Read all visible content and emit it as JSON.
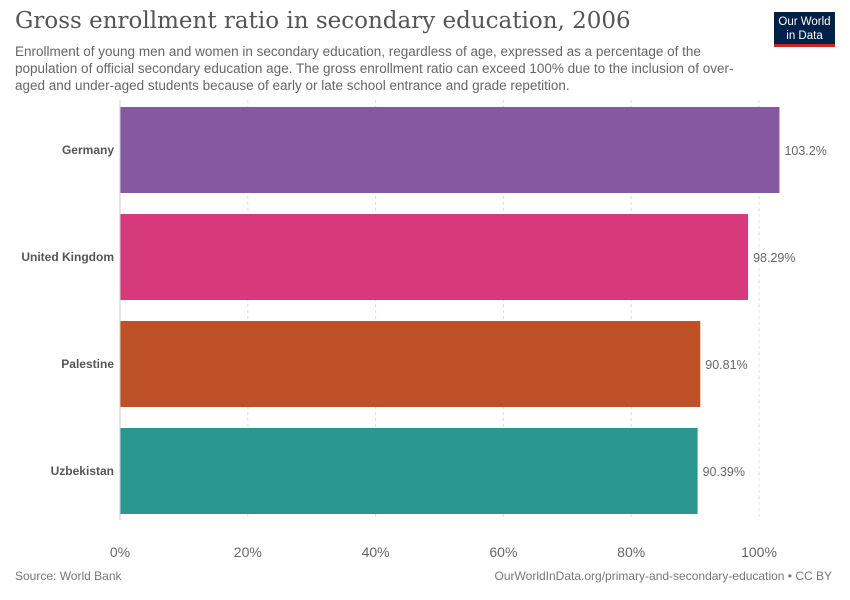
{
  "header": {
    "title": "Gross enrollment ratio in secondary education, 2006",
    "subtitle": "Enrollment of young men and women in secondary education, regardless of age, expressed as a percentage of the population of official secondary education age. The gross enrollment ratio can exceed 100% due to the inclusion of over-aged and under-aged students because of early or late school entrance and grade repetition.",
    "logo_line1": "Our World",
    "logo_line2": "in Data"
  },
  "footer": {
    "source": "Source: World Bank",
    "url_license": "OurWorldInData.org/primary-and-secondary-education • CC BY"
  },
  "chart_data": {
    "type": "bar",
    "orientation": "horizontal",
    "categories": [
      "Germany",
      "United Kingdom",
      "Palestine",
      "Uzbekistan"
    ],
    "values": [
      103.2,
      98.29,
      90.81,
      90.39
    ],
    "value_labels": [
      "103.2%",
      "98.29%",
      "90.81%",
      "90.39%"
    ],
    "colors": [
      "#8558a0",
      "#d63a7b",
      "#bf5129",
      "#2a9690"
    ],
    "xlim": [
      0,
      100
    ],
    "xticks": [
      0,
      20,
      40,
      60,
      80,
      100
    ],
    "xtick_labels": [
      "0%",
      "20%",
      "40%",
      "60%",
      "80%",
      "100%"
    ],
    "grid": true
  }
}
